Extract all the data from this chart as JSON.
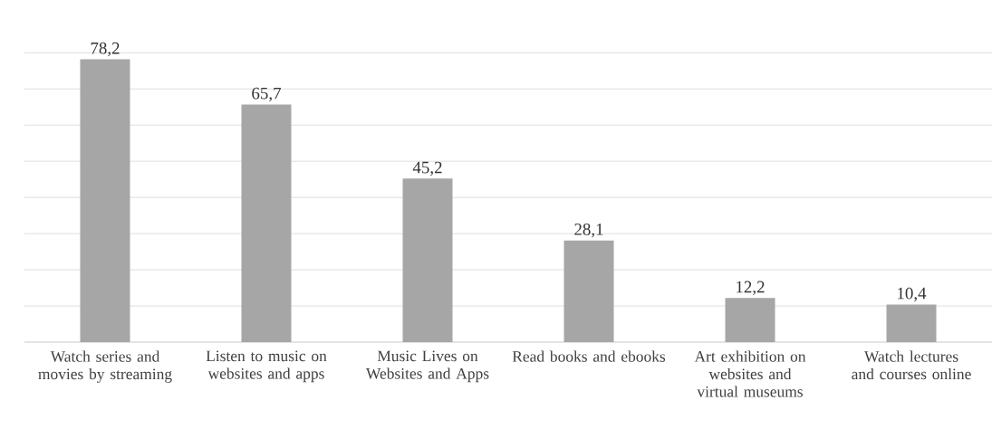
{
  "chart_data": {
    "type": "bar",
    "categories": [
      "Watch series and movies by streaming",
      "Listen to music on websites and apps",
      "Music Lives on Websites and Apps",
      "Read books and ebooks",
      "Art exhibition on websites and virtual museums",
      "Watch lectures and courses online"
    ],
    "values": [
      78.2,
      65.7,
      45.2,
      28.1,
      12.2,
      10.4
    ],
    "value_labels": [
      "78,2",
      "65,7",
      "45,2",
      "28,1",
      "12,2",
      "10,4"
    ],
    "color": "#a6a6a6",
    "grid": "y",
    "tick_labels": "x"
  }
}
